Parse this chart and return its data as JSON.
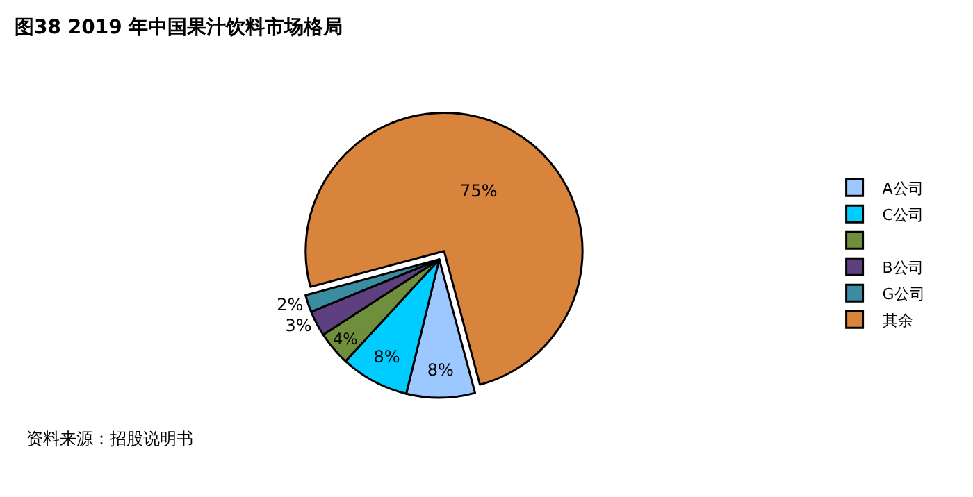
{
  "chart_data": {
    "type": "pie",
    "title": "图38 2019 年中国果汁饮料市场格局",
    "categories": [
      "A公司",
      "C公司",
      null,
      "B公司",
      "G公司",
      "其余"
    ],
    "values": [
      8,
      8,
      4,
      3,
      2,
      75
    ],
    "colors": [
      "#9cc8ff",
      "#00ccff",
      "#6f8f3c",
      "#5e4080",
      "#3a8ca0",
      "#d9843d"
    ],
    "value_labels": [
      "8%",
      "8%",
      "4%",
      "3%",
      "2%",
      "75%"
    ],
    "legend": "right",
    "annotations": [
      "资料来源：招股说明书"
    ]
  }
}
